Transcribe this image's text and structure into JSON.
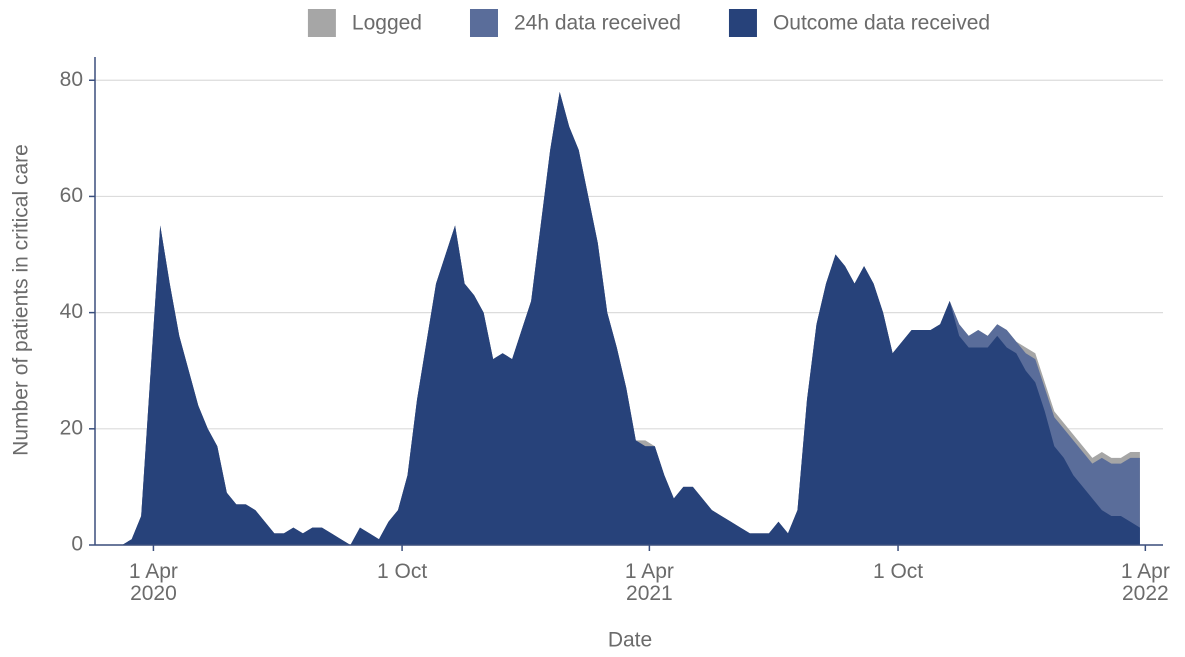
{
  "chart_data": {
    "type": "area",
    "xlabel": "Date",
    "ylabel": "Number of patients in critical care",
    "x": [
      "2020-03-09",
      "2020-03-16",
      "2020-03-23",
      "2020-03-30",
      "2020-04-06",
      "2020-04-13",
      "2020-04-20",
      "2020-04-27",
      "2020-05-04",
      "2020-05-11",
      "2020-05-18",
      "2020-05-25",
      "2020-06-01",
      "2020-06-08",
      "2020-06-15",
      "2020-06-22",
      "2020-06-29",
      "2020-07-06",
      "2020-07-13",
      "2020-07-20",
      "2020-07-27",
      "2020-08-03",
      "2020-08-10",
      "2020-08-17",
      "2020-08-24",
      "2020-08-31",
      "2020-09-07",
      "2020-09-14",
      "2020-09-21",
      "2020-09-28",
      "2020-10-05",
      "2020-10-12",
      "2020-10-19",
      "2020-10-26",
      "2020-11-02",
      "2020-11-09",
      "2020-11-16",
      "2020-11-23",
      "2020-11-30",
      "2020-12-07",
      "2020-12-14",
      "2020-12-21",
      "2020-12-28",
      "2021-01-04",
      "2021-01-11",
      "2021-01-18",
      "2021-01-25",
      "2021-02-01",
      "2021-02-08",
      "2021-02-15",
      "2021-02-22",
      "2021-03-01",
      "2021-03-08",
      "2021-03-15",
      "2021-03-22",
      "2021-03-29",
      "2021-04-05",
      "2021-04-12",
      "2021-04-19",
      "2021-04-26",
      "2021-05-03",
      "2021-05-10",
      "2021-05-17",
      "2021-05-24",
      "2021-05-31",
      "2021-06-07",
      "2021-06-14",
      "2021-06-21",
      "2021-06-28",
      "2021-07-05",
      "2021-07-12",
      "2021-07-19",
      "2021-07-26",
      "2021-08-02",
      "2021-08-09",
      "2021-08-16",
      "2021-08-23",
      "2021-08-30",
      "2021-09-06",
      "2021-09-13",
      "2021-09-20",
      "2021-09-27",
      "2021-10-04",
      "2021-10-11",
      "2021-10-18",
      "2021-10-25",
      "2021-11-01",
      "2021-11-08",
      "2021-11-15",
      "2021-11-22",
      "2021-11-29",
      "2021-12-06",
      "2021-12-13",
      "2021-12-20",
      "2021-12-27",
      "2022-01-03",
      "2022-01-10",
      "2022-01-17",
      "2022-01-24",
      "2022-01-31",
      "2022-02-07",
      "2022-02-14",
      "2022-02-21",
      "2022-02-28",
      "2022-03-07",
      "2022-03-14",
      "2022-03-21",
      "2022-03-28"
    ],
    "series": [
      {
        "name": "Logged",
        "color": "#a6a6a6",
        "values": [
          0,
          1,
          5,
          30,
          55,
          45,
          36,
          30,
          24,
          20,
          17,
          9,
          7,
          7,
          6,
          4,
          2,
          2,
          3,
          2,
          3,
          3,
          2,
          1,
          0,
          3,
          2,
          1,
          4,
          6,
          12,
          25,
          35,
          45,
          50,
          55,
          45,
          43,
          40,
          32,
          33,
          32,
          37,
          42,
          55,
          68,
          78,
          72,
          68,
          60,
          52,
          40,
          34,
          27,
          18,
          18,
          17,
          12,
          8,
          10,
          10,
          8,
          6,
          5,
          4,
          3,
          2,
          2,
          2,
          4,
          2,
          6,
          25,
          38,
          45,
          50,
          48,
          45,
          48,
          45,
          40,
          33,
          35,
          37,
          37,
          37,
          38,
          42,
          38,
          36,
          37,
          36,
          38,
          37,
          35,
          34,
          33,
          28,
          23,
          21,
          19,
          17,
          15,
          16,
          15,
          15,
          16,
          16
        ]
      },
      {
        "name": "24h data received",
        "color": "#5a6d9a",
        "values": [
          0,
          1,
          5,
          30,
          55,
          45,
          36,
          30,
          24,
          20,
          17,
          9,
          7,
          7,
          6,
          4,
          2,
          2,
          3,
          2,
          3,
          3,
          2,
          1,
          0,
          3,
          2,
          1,
          4,
          6,
          12,
          25,
          35,
          45,
          50,
          55,
          45,
          43,
          40,
          32,
          33,
          32,
          37,
          42,
          55,
          68,
          78,
          72,
          68,
          60,
          52,
          40,
          34,
          27,
          18,
          17,
          17,
          12,
          8,
          10,
          10,
          8,
          6,
          5,
          4,
          3,
          2,
          2,
          2,
          4,
          2,
          6,
          25,
          38,
          45,
          50,
          48,
          45,
          48,
          45,
          40,
          33,
          35,
          37,
          37,
          37,
          38,
          42,
          38,
          36,
          37,
          36,
          38,
          37,
          35,
          33,
          32,
          27,
          22,
          20,
          18,
          16,
          14,
          15,
          14,
          14,
          15,
          15
        ]
      },
      {
        "name": "Outcome data received",
        "color": "#27427a",
        "values": [
          0,
          1,
          5,
          30,
          55,
          45,
          36,
          30,
          24,
          20,
          17,
          9,
          7,
          7,
          6,
          4,
          2,
          2,
          3,
          2,
          3,
          3,
          2,
          1,
          0,
          3,
          2,
          1,
          4,
          6,
          12,
          25,
          35,
          45,
          50,
          55,
          45,
          43,
          40,
          32,
          33,
          32,
          37,
          42,
          55,
          68,
          78,
          72,
          68,
          60,
          52,
          40,
          34,
          27,
          18,
          17,
          17,
          12,
          8,
          10,
          10,
          8,
          6,
          5,
          4,
          3,
          2,
          2,
          2,
          4,
          2,
          6,
          25,
          38,
          45,
          50,
          48,
          45,
          48,
          45,
          40,
          33,
          35,
          37,
          37,
          37,
          38,
          42,
          36,
          34,
          34,
          34,
          36,
          34,
          33,
          30,
          28,
          23,
          17,
          15,
          12,
          10,
          8,
          6,
          5,
          5,
          4,
          3
        ]
      }
    ],
    "xlim": [
      "2020-02-18",
      "2022-04-14"
    ],
    "xticks": [
      {
        "value": "2020-04-01",
        "label": "1 Apr\n2020"
      },
      {
        "value": "2020-10-01",
        "label": "1 Oct"
      },
      {
        "value": "2021-04-01",
        "label": "1 Apr\n2021"
      },
      {
        "value": "2021-10-01",
        "label": "1 Oct"
      },
      {
        "value": "2022-04-01",
        "label": "1 Apr\n2022"
      }
    ],
    "ylim": [
      0,
      84
    ],
    "yticks": [
      0,
      20,
      40,
      60,
      80
    ],
    "grid": true,
    "legend": "top"
  }
}
